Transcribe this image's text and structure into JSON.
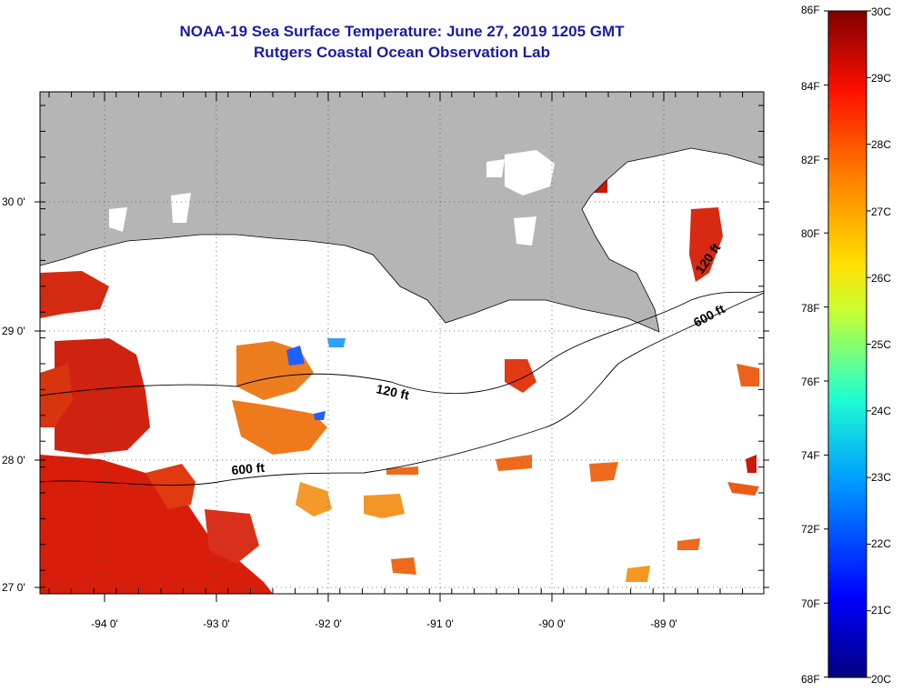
{
  "title": "NOAA-19 Sea Surface Temperature:  June 27, 2019 1205 GMT",
  "subtitle": "Rutgers Coastal Ocean Observation Lab",
  "axes": {
    "x_ticks": [
      "-94 0'",
      "-93 0'",
      "-92 0'",
      "-91 0'",
      "-90 0'",
      "-89 0'"
    ],
    "y_ticks": [
      "30 0'",
      "29 0'",
      "28 0'",
      "27 0'"
    ]
  },
  "contour_labels": [
    "120 ft",
    "600 ft",
    "600 ft",
    "120 ft"
  ],
  "colorbar": {
    "fahrenheit": [
      "86F",
      "84F",
      "82F",
      "80F",
      "78F",
      "76F",
      "74F",
      "72F",
      "70F",
      "68F"
    ],
    "celsius": [
      "30C",
      "29C",
      "28C",
      "27C",
      "26C",
      "25C",
      "24C",
      "23C",
      "22C",
      "21C",
      "20C"
    ]
  },
  "colors": {
    "land": "#b5b5b5",
    "title": "#1a1aa8",
    "warm": "#d81e0a",
    "orange": "#f26a14"
  }
}
